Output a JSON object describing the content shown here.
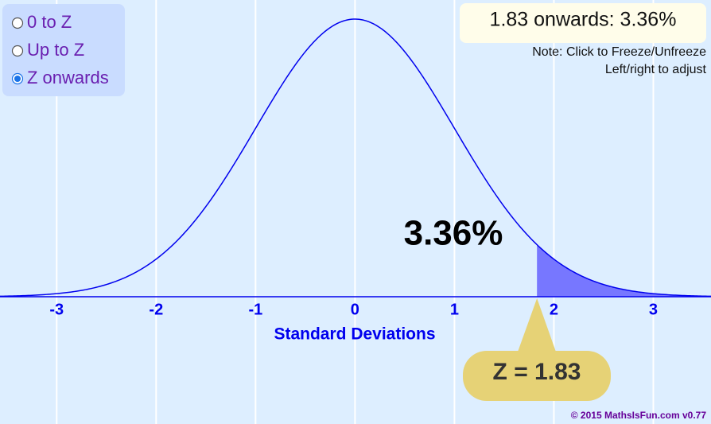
{
  "chart_data": {
    "type": "normal",
    "x_label": "Standard Deviations",
    "xlim": [
      -3.57,
      3.58
    ],
    "xticks": [
      -3,
      -2,
      -1,
      0,
      1,
      2,
      3
    ],
    "grid": true,
    "z": 1.83,
    "shade": "right",
    "color": "#0000ee",
    "shade_color": "#7777ff",
    "readout": "1.83 onwards: 3.36%",
    "area_label": "3.36%",
    "z_label": "Z = 1.83"
  },
  "options": {
    "items": [
      "0 to Z",
      "Up to Z",
      "Z onwards"
    ],
    "selected": 2
  },
  "notes": [
    "Note: Click to Freeze/Unfreeze",
    "Left/right to adjust"
  ],
  "footer": "© 2015 MathsIsFun.com v0.77"
}
